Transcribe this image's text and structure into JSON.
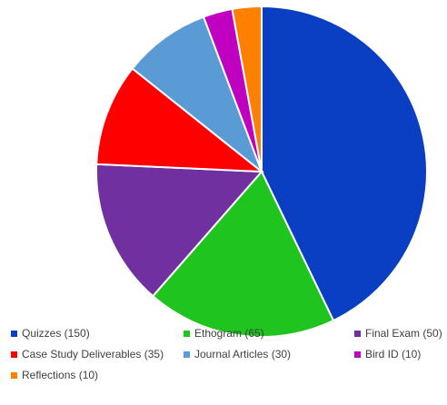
{
  "chart_data": {
    "type": "pie",
    "title": "",
    "categories": [
      "Quizzes",
      "Ethogram",
      "Final Exam",
      "Case Study Deliverables",
      "Journal Articles",
      "Bird ID",
      "Reflections"
    ],
    "values": [
      150,
      65,
      50,
      35,
      30,
      10,
      10
    ],
    "colors": [
      "#0a3fc4",
      "#1fc41f",
      "#7030a0",
      "#ff0000",
      "#5b9bd5",
      "#c000c0",
      "#ff8000"
    ],
    "start_angle_deg": 0,
    "direction": "clockwise",
    "legend_position": "bottom",
    "legend_labels": [
      "Quizzes (150)",
      "Ethogram (65)",
      "Final Exam (50)",
      "Case Study Deliverables (35)",
      "Journal Articles (30)",
      "Bird ID (10)",
      "Reflections (10)"
    ]
  }
}
